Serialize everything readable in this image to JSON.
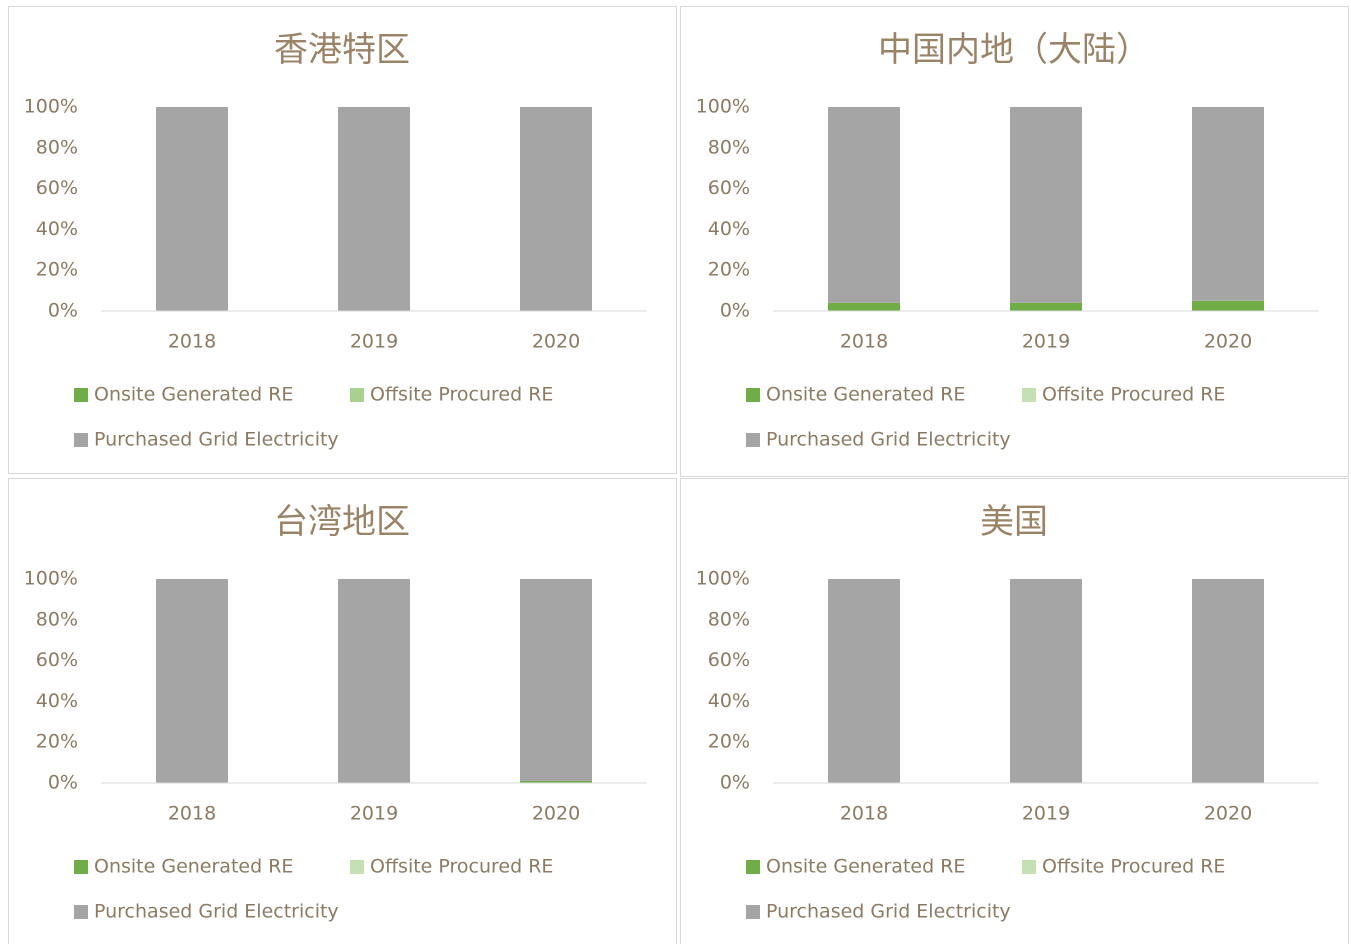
{
  "chart_data": [
    {
      "type": "stacked-bar",
      "title": "香港特区",
      "categories": [
        "2018",
        "2019",
        "2020"
      ],
      "series": [
        {
          "name": "Onsite Generated RE",
          "color": "#70ad47",
          "values": [
            0,
            0,
            0
          ]
        },
        {
          "name": "Offsite Procured RE",
          "color": "#a9d18e",
          "values": [
            0,
            0,
            0
          ]
        },
        {
          "name": "Purchased Grid Electricity",
          "color": "#a5a5a5",
          "values": [
            100,
            100,
            100
          ]
        }
      ],
      "ylim": [
        0,
        100
      ],
      "yticks": [
        {
          "value": 0,
          "label": "0%"
        },
        {
          "value": 20,
          "label": "20%"
        },
        {
          "value": 40,
          "label": "40%"
        },
        {
          "value": 60,
          "label": "60%"
        },
        {
          "value": 80,
          "label": "80%"
        },
        {
          "value": 100,
          "label": "100%"
        }
      ],
      "grid": false,
      "legend": "bottom"
    },
    {
      "type": "stacked-bar",
      "title": "中国内地（大陆）",
      "categories": [
        "2018",
        "2019",
        "2020"
      ],
      "series": [
        {
          "name": "Onsite Generated RE",
          "color": "#70ad47",
          "values": [
            4,
            4,
            5
          ]
        },
        {
          "name": "Offsite Procured RE",
          "color": "#c5e0b4",
          "values": [
            0,
            0,
            0
          ]
        },
        {
          "name": "Purchased Grid Electricity",
          "color": "#a5a5a5",
          "values": [
            96,
            96,
            95
          ]
        }
      ],
      "ylim": [
        0,
        100
      ],
      "yticks": [
        {
          "value": 0,
          "label": "0%"
        },
        {
          "value": 20,
          "label": "20%"
        },
        {
          "value": 40,
          "label": "40%"
        },
        {
          "value": 60,
          "label": "60%"
        },
        {
          "value": 80,
          "label": "80%"
        },
        {
          "value": 100,
          "label": "100%"
        }
      ],
      "grid": false,
      "legend": "bottom"
    },
    {
      "type": "stacked-bar",
      "title": "台湾地区",
      "categories": [
        "2018",
        "2019",
        "2020"
      ],
      "series": [
        {
          "name": "Onsite Generated RE",
          "color": "#70ad47",
          "values": [
            0,
            0,
            1
          ]
        },
        {
          "name": "Offsite Procured RE",
          "color": "#c5e0b4",
          "values": [
            0,
            0,
            0
          ]
        },
        {
          "name": "Purchased Grid Electricity",
          "color": "#a5a5a5",
          "values": [
            100,
            100,
            99
          ]
        }
      ],
      "ylim": [
        0,
        100
      ],
      "yticks": [
        {
          "value": 0,
          "label": "0%"
        },
        {
          "value": 20,
          "label": "20%"
        },
        {
          "value": 40,
          "label": "40%"
        },
        {
          "value": 60,
          "label": "60%"
        },
        {
          "value": 80,
          "label": "80%"
        },
        {
          "value": 100,
          "label": "100%"
        }
      ],
      "grid": false,
      "legend": "bottom"
    },
    {
      "type": "stacked-bar",
      "title": "美国",
      "categories": [
        "2018",
        "2019",
        "2020"
      ],
      "series": [
        {
          "name": "Onsite Generated RE",
          "color": "#70ad47",
          "values": [
            0,
            0,
            0
          ]
        },
        {
          "name": "Offsite Procured RE",
          "color": "#c5e0b4",
          "values": [
            0,
            0,
            0
          ]
        },
        {
          "name": "Purchased Grid Electricity",
          "color": "#a5a5a5",
          "values": [
            100,
            100,
            100
          ]
        }
      ],
      "ylim": [
        0,
        100
      ],
      "yticks": [
        {
          "value": 0,
          "label": "0%"
        },
        {
          "value": 20,
          "label": "20%"
        },
        {
          "value": 40,
          "label": "40%"
        },
        {
          "value": 60,
          "label": "60%"
        },
        {
          "value": 80,
          "label": "80%"
        },
        {
          "value": 100,
          "label": "100%"
        }
      ],
      "grid": false,
      "legend": "bottom"
    }
  ]
}
